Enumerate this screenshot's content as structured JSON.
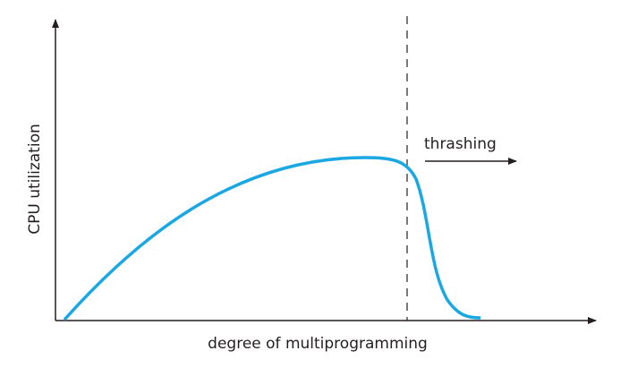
{
  "axes": {
    "x_label": "degree of multiprogramming",
    "y_label": "CPU utilization"
  },
  "annotation": "thrashing"
}
